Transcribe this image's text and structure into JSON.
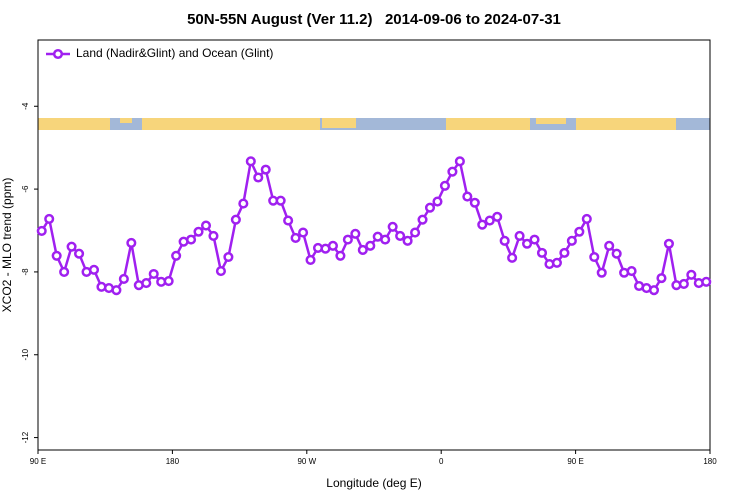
{
  "chart_data": {
    "type": "line",
    "title": "50N-55N August (Ver 11.2)   2014-09-06 to 2024-07-31",
    "xlabel": "Longitude (deg E)",
    "ylabel": "XCO2 - MLO trend (ppm)",
    "xlim": [
      90,
      540
    ],
    "ylim": [
      -12.3,
      -2.4
    ],
    "xticks": [
      {
        "value": 90,
        "label": "90 E"
      },
      180,
      {
        "value": 270,
        "label": "90 W"
      },
      {
        "value": 360,
        "label": "0"
      },
      {
        "value": 450,
        "label": "90 E"
      },
      {
        "value": 540,
        "label": "180"
      }
    ],
    "yticks": [
      -12,
      -10,
      -8,
      -6,
      -4
    ],
    "legend": "upper left",
    "x": [
      92.5,
      97.5,
      102.5,
      107.5,
      112.5,
      117.5,
      122.5,
      127.5,
      132.5,
      137.5,
      142.5,
      147.5,
      152.5,
      157.5,
      162.5,
      167.5,
      172.5,
      177.5,
      182.5,
      187.5,
      192.5,
      197.5,
      202.5,
      207.5,
      212.5,
      217.5,
      222.5,
      227.5,
      232.5,
      237.5,
      242.5,
      247.5,
      252.5,
      257.5,
      262.5,
      267.5,
      272.5,
      277.5,
      282.5,
      287.5,
      292.5,
      297.5,
      302.5,
      307.5,
      312.5,
      317.5,
      322.5,
      327.5,
      332.5,
      337.5,
      342.5,
      347.5,
      352.5,
      357.5,
      362.5,
      367.5,
      372.5,
      377.5,
      382.5,
      387.5,
      392.5,
      397.5,
      402.5,
      407.5,
      412.5,
      417.5,
      422.5,
      427.5,
      432.5,
      437.5,
      442.5,
      447.5,
      452.5,
      457.5,
      462.5,
      467.5,
      472.5,
      477.5,
      482.5,
      487.5,
      492.5,
      497.5,
      502.5,
      507.5,
      512.5,
      517.5,
      522.5,
      527.5,
      532.5,
      537.5
    ],
    "series": [
      {
        "name": "Land (Nadir&Glint) and Ocean (Glint)",
        "color": "#a020f0",
        "values": [
          -7.01,
          -6.72,
          -7.61,
          -8.0,
          -7.39,
          -7.56,
          -8.0,
          -7.95,
          -8.36,
          -8.39,
          -8.44,
          -8.17,
          -7.3,
          -8.32,
          -8.27,
          -8.05,
          -8.24,
          -8.22,
          -7.61,
          -7.27,
          -7.22,
          -7.03,
          -6.88,
          -7.13,
          -7.98,
          -7.64,
          -6.74,
          -6.35,
          -5.33,
          -5.72,
          -5.53,
          -6.28,
          -6.28,
          -6.76,
          -7.18,
          -7.05,
          -7.71,
          -7.42,
          -7.44,
          -7.37,
          -7.61,
          -7.22,
          -7.08,
          -7.47,
          -7.37,
          -7.15,
          -7.22,
          -6.91,
          -7.13,
          -7.25,
          -7.05,
          -6.74,
          -6.45,
          -6.3,
          -5.92,
          -5.58,
          -5.33,
          -6.18,
          -6.33,
          -6.86,
          -6.76,
          -6.67,
          -7.25,
          -7.66,
          -7.13,
          -7.32,
          -7.22,
          -7.54,
          -7.81,
          -7.78,
          -7.54,
          -7.25,
          -7.03,
          -6.72,
          -7.64,
          -8.02,
          -7.37,
          -7.56,
          -8.02,
          -7.98,
          -8.34,
          -8.39,
          -8.44,
          -8.15,
          -7.32,
          -8.32,
          -8.29,
          -8.07,
          -8.27,
          -8.24
        ]
      }
    ]
  }
}
